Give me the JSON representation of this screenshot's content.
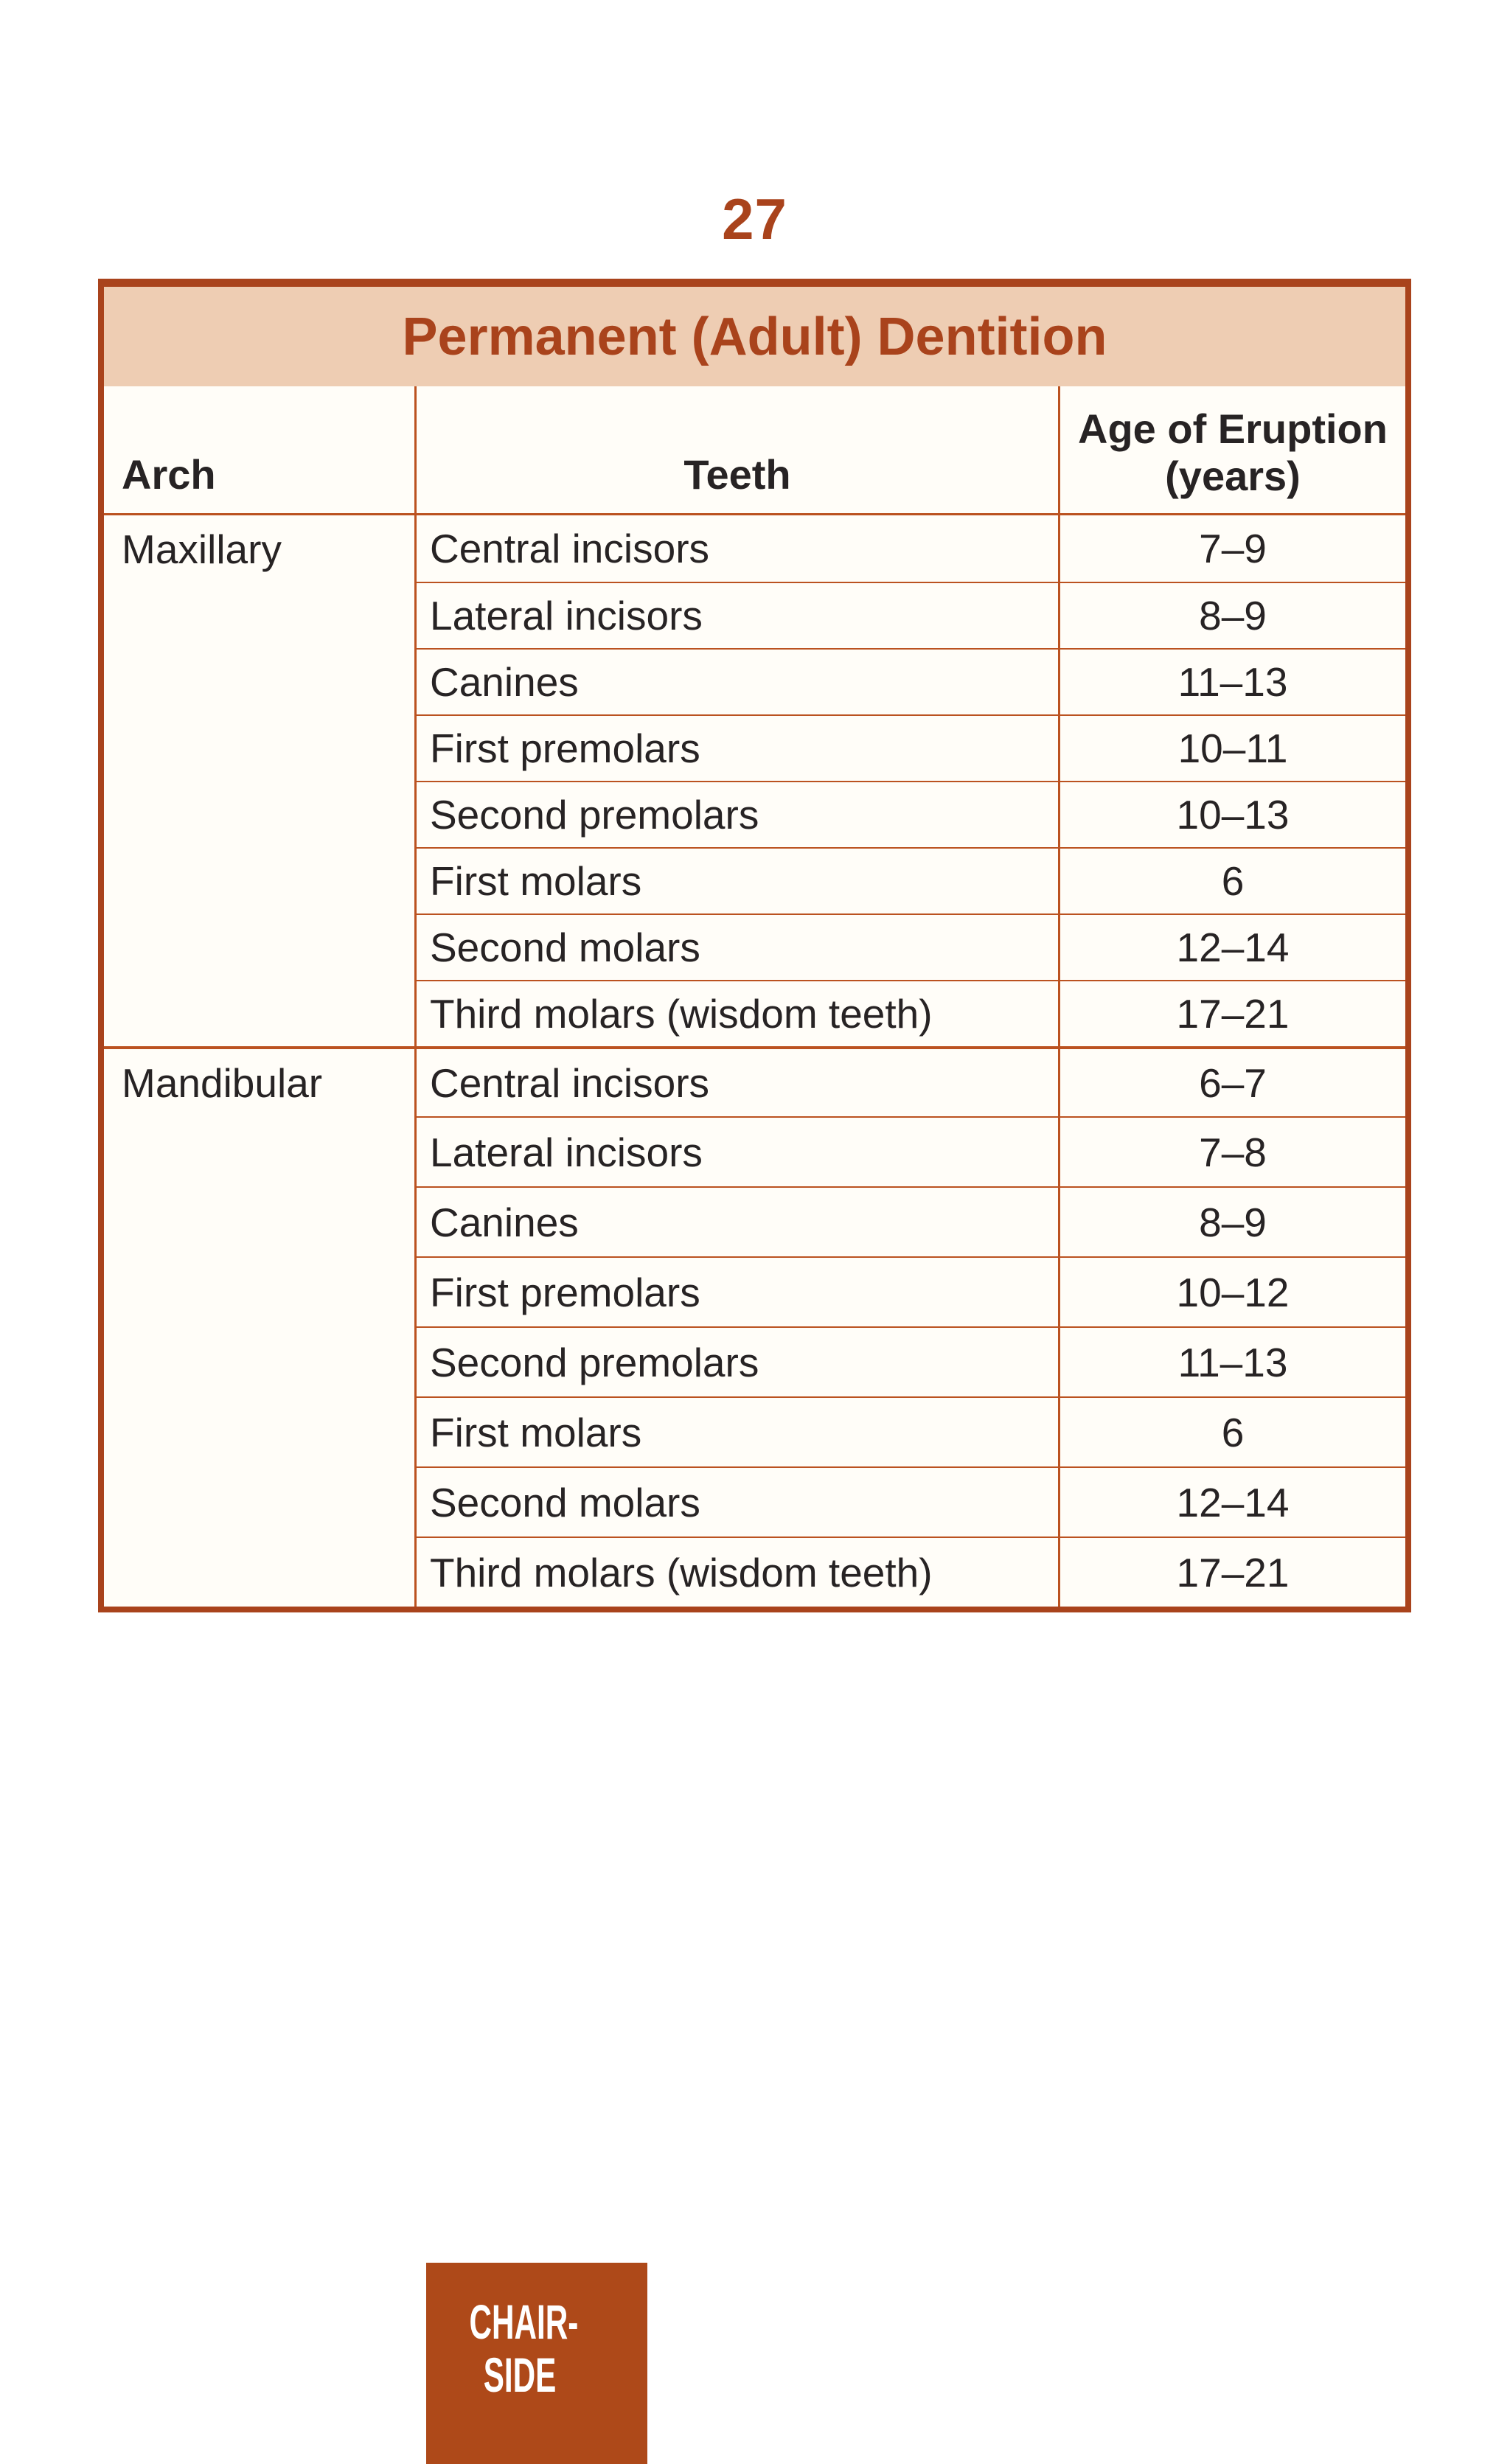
{
  "page_number": "27",
  "table": {
    "title": "Permanent (Adult) Dentition",
    "headers": {
      "arch": "Arch",
      "teeth": "Teeth",
      "age_line1": "Age of Eruption",
      "age_line2": "(years)"
    },
    "sections": [
      {
        "arch": "Maxillary",
        "rows": [
          {
            "teeth": "Central incisors",
            "age": "7–9"
          },
          {
            "teeth": "Lateral incisors",
            "age": "8–9"
          },
          {
            "teeth": "Canines",
            "age": "11–13"
          },
          {
            "teeth": "First premolars",
            "age": "10–11"
          },
          {
            "teeth": "Second premolars",
            "age": "10–13"
          },
          {
            "teeth": "First molars",
            "age": "6"
          },
          {
            "teeth": "Second molars",
            "age": "12–14"
          },
          {
            "teeth": "Third molars (wisdom teeth)",
            "age": "17–21"
          }
        ]
      },
      {
        "arch": "Mandibular",
        "rows": [
          {
            "teeth": "Central incisors",
            "age": "6–7"
          },
          {
            "teeth": "Lateral incisors",
            "age": "7–8"
          },
          {
            "teeth": "Canines",
            "age": "8–9"
          },
          {
            "teeth": "First premolars",
            "age": "10–12"
          },
          {
            "teeth": "Second premolars",
            "age": "11–13"
          },
          {
            "teeth": "First molars",
            "age": "6"
          },
          {
            "teeth": "Second molars",
            "age": "12–14"
          },
          {
            "teeth": "Third molars (wisdom teeth)",
            "age": "17–21"
          }
        ]
      }
    ]
  },
  "badge": {
    "line1": "CHAIR-",
    "line2": "SIDE"
  },
  "colors": {
    "rust": "#a9431c",
    "grid_line": "#bb5220",
    "title_band": "#eecdb3",
    "badge_bg": "#ae4919",
    "text": "#272324"
  }
}
